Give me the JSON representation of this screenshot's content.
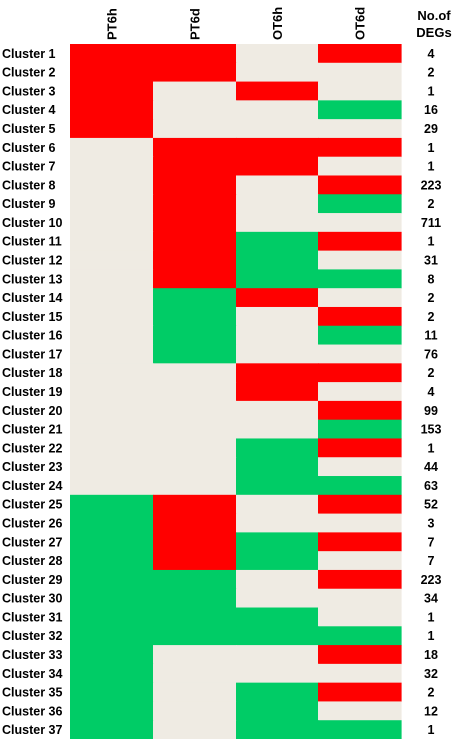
{
  "chart_data": {
    "type": "heatmap",
    "columns": [
      "PT6h",
      "PT6d",
      "OT6h",
      "OT6d"
    ],
    "count_header": [
      "No.of",
      "DEGs"
    ],
    "legend_colors": {
      "up": "#ff0000",
      "down": "#00cc66",
      "none": "#efebe3"
    },
    "rows": [
      {
        "label": "Cluster 1",
        "states": [
          "up",
          "up",
          "none",
          "up"
        ],
        "degs": "4"
      },
      {
        "label": "Cluster 2",
        "states": [
          "up",
          "up",
          "none",
          "none"
        ],
        "degs": "2"
      },
      {
        "label": "Cluster 3",
        "states": [
          "up",
          "none",
          "up",
          "none"
        ],
        "degs": "1"
      },
      {
        "label": "Cluster 4",
        "states": [
          "up",
          "none",
          "none",
          "down"
        ],
        "degs": "16"
      },
      {
        "label": "Cluster 5",
        "states": [
          "up",
          "none",
          "none",
          "none"
        ],
        "degs": "29"
      },
      {
        "label": "Cluster 6",
        "states": [
          "none",
          "up",
          "up",
          "up"
        ],
        "degs": "1"
      },
      {
        "label": "Cluster 7",
        "states": [
          "none",
          "up",
          "up",
          "none"
        ],
        "degs": "1"
      },
      {
        "label": "Cluster 8",
        "states": [
          "none",
          "up",
          "none",
          "up"
        ],
        "degs": "223"
      },
      {
        "label": "Cluster 9",
        "states": [
          "none",
          "up",
          "none",
          "down"
        ],
        "degs": "2"
      },
      {
        "label": "Cluster 10",
        "states": [
          "none",
          "up",
          "none",
          "none"
        ],
        "degs": "711"
      },
      {
        "label": "Cluster 11",
        "states": [
          "none",
          "up",
          "down",
          "up"
        ],
        "degs": "1"
      },
      {
        "label": "Cluster 12",
        "states": [
          "none",
          "up",
          "down",
          "none"
        ],
        "degs": "31"
      },
      {
        "label": "Cluster 13",
        "states": [
          "none",
          "up",
          "down",
          "down"
        ],
        "degs": "8"
      },
      {
        "label": "Cluster 14",
        "states": [
          "none",
          "down",
          "up",
          "none"
        ],
        "degs": "2"
      },
      {
        "label": "Cluster 15",
        "states": [
          "none",
          "down",
          "none",
          "up"
        ],
        "degs": "2"
      },
      {
        "label": "Cluster 16",
        "states": [
          "none",
          "down",
          "none",
          "down"
        ],
        "degs": "11"
      },
      {
        "label": "Cluster 17",
        "states": [
          "none",
          "down",
          "none",
          "none"
        ],
        "degs": "76"
      },
      {
        "label": "Cluster 18",
        "states": [
          "none",
          "none",
          "up",
          "up"
        ],
        "degs": "2"
      },
      {
        "label": "Cluster 19",
        "states": [
          "none",
          "none",
          "up",
          "none"
        ],
        "degs": "4"
      },
      {
        "label": "Cluster 20",
        "states": [
          "none",
          "none",
          "none",
          "up"
        ],
        "degs": "99"
      },
      {
        "label": "Cluster 21",
        "states": [
          "none",
          "none",
          "none",
          "down"
        ],
        "degs": "153"
      },
      {
        "label": "Cluster 22",
        "states": [
          "none",
          "none",
          "down",
          "up"
        ],
        "degs": "1"
      },
      {
        "label": "Cluster 23",
        "states": [
          "none",
          "none",
          "down",
          "none"
        ],
        "degs": "44"
      },
      {
        "label": "Cluster 24",
        "states": [
          "none",
          "none",
          "down",
          "down"
        ],
        "degs": "63"
      },
      {
        "label": "Cluster 25",
        "states": [
          "down",
          "up",
          "none",
          "up"
        ],
        "degs": "52"
      },
      {
        "label": "Cluster 26",
        "states": [
          "down",
          "up",
          "none",
          "none"
        ],
        "degs": "3"
      },
      {
        "label": "Cluster 27",
        "states": [
          "down",
          "up",
          "down",
          "up"
        ],
        "degs": "7"
      },
      {
        "label": "Cluster 28",
        "states": [
          "down",
          "up",
          "down",
          "none"
        ],
        "degs": "7"
      },
      {
        "label": "Cluster 29",
        "states": [
          "down",
          "down",
          "none",
          "up"
        ],
        "degs": "223"
      },
      {
        "label": "Cluster 30",
        "states": [
          "down",
          "down",
          "none",
          "none"
        ],
        "degs": "34"
      },
      {
        "label": "Cluster 31",
        "states": [
          "down",
          "down",
          "down",
          "none"
        ],
        "degs": "1"
      },
      {
        "label": "Cluster 32",
        "states": [
          "down",
          "down",
          "down",
          "down"
        ],
        "degs": "1"
      },
      {
        "label": "Cluster 33",
        "states": [
          "down",
          "none",
          "none",
          "up"
        ],
        "degs": "18"
      },
      {
        "label": "Cluster 34",
        "states": [
          "down",
          "none",
          "none",
          "none"
        ],
        "degs": "32"
      },
      {
        "label": "Cluster 35",
        "states": [
          "down",
          "none",
          "down",
          "up"
        ],
        "degs": "2"
      },
      {
        "label": "Cluster 36",
        "states": [
          "down",
          "none",
          "down",
          "none"
        ],
        "degs": "12"
      },
      {
        "label": "Cluster 37",
        "states": [
          "down",
          "none",
          "down",
          "down"
        ],
        "degs": "1"
      }
    ]
  }
}
